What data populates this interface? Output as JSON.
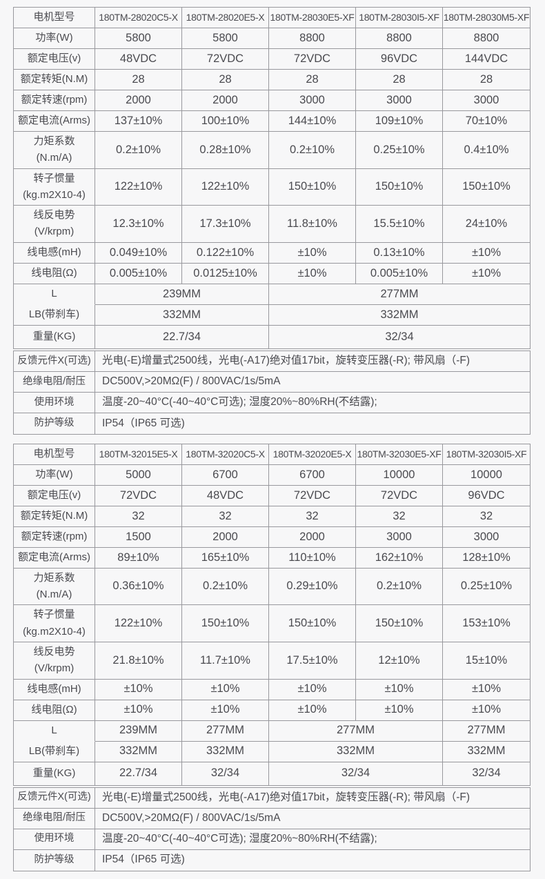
{
  "colors": {
    "page_background": "#f7f7f8",
    "table_border": "#98989d",
    "text": "#4a4a4f"
  },
  "tables": [
    {
      "rows": [
        {
          "label": "电机型号",
          "header": true,
          "cells": [
            "180TM-28020C5-X",
            "180TM-28020E5-X",
            "180TM-28030E5-XF",
            "180TM-28030I5-XF",
            "180TM-28030M5-XF"
          ]
        },
        {
          "label": "功率(W)",
          "cells": [
            "5800",
            "5800",
            "8800",
            "8800",
            "8800"
          ]
        },
        {
          "label": "额定电压(v)",
          "cells": [
            "48VDC",
            "72VDC",
            "72VDC",
            "96VDC",
            "144VDC"
          ]
        },
        {
          "label": "额定转矩(N.M)",
          "cells": [
            "28",
            "28",
            "28",
            "28",
            "28"
          ]
        },
        {
          "label": "额定转速(rpm)",
          "cells": [
            "2000",
            "2000",
            "3000",
            "3000",
            "3000"
          ]
        },
        {
          "label": "额定电流(Arms)",
          "cells": [
            "137±10%",
            "100±10%",
            "144±10%",
            "109±10%",
            "70±10%"
          ]
        },
        {
          "label": "力矩系数\n(N.m/A)",
          "cells": [
            "0.2±10%",
            "0.28±10%",
            "0.2±10%",
            "0.25±10%",
            "0.4±10%"
          ]
        },
        {
          "label": "转子惯量\n(kg.m2X10-4)",
          "cells": [
            "122±10%",
            "122±10%",
            "150±10%",
            "150±10%",
            "150±10%"
          ]
        },
        {
          "label": "线反电势\n(V/krpm)",
          "cells": [
            "12.3±10%",
            "17.3±10%",
            "11.8±10%",
            "15.5±10%",
            "24±10%"
          ]
        },
        {
          "label": "线电感(mH)",
          "cells": [
            "0.049±10%",
            "0.122±10%",
            "±10%",
            "0.13±10%",
            "±10%"
          ]
        },
        {
          "label": "线电阻(Ω)",
          "cells": [
            "0.005±10%",
            "0.0125±10%",
            "±10%",
            "0.005±10%",
            "±10%"
          ]
        },
        {
          "label": "L",
          "merge_label_down": true,
          "cells": [
            {
              "text": "239MM",
              "span": 2
            },
            {
              "text": "277MM",
              "span": 3
            }
          ]
        },
        {
          "label": "LB(带刹车)",
          "cells": [
            {
              "text": "332MM",
              "span": 2
            },
            {
              "text": "332MM",
              "span": 3
            }
          ]
        },
        {
          "label": "重量(KG)",
          "tall": true,
          "cells": [
            {
              "text": "22.7/34",
              "span": 2
            },
            {
              "text": "32/34",
              "span": 3
            }
          ]
        }
      ],
      "notes": [
        {
          "label": "反馈元件X(可选)",
          "value": "光电(-E)增量式2500线，光电(-A17)绝对值17bit，旋转变压器(-R); 带风扇（-F)"
        },
        {
          "label": "绝缘电阻/耐压",
          "value": "DC500V,>20MΩ(F) / 800VAC/1s/5mA"
        },
        {
          "label": "使用环境",
          "value": "温度-20~40°C(-40~40°C可选); 湿度20%~80%RH(不结露);"
        },
        {
          "label": "防护等级",
          "value": "IP54（IP65 可选)"
        }
      ]
    },
    {
      "rows": [
        {
          "label": "电机型号",
          "header": true,
          "cells": [
            "180TM-32015E5-X",
            "180TM-32020C5-X",
            "180TM-32020E5-X",
            "180TM-32030E5-XF",
            "180TM-32030I5-XF"
          ]
        },
        {
          "label": "功率(W)",
          "cells": [
            "5000",
            "6700",
            "6700",
            "10000",
            "10000"
          ]
        },
        {
          "label": "额定电压(v)",
          "cells": [
            "72VDC",
            "48VDC",
            "72VDC",
            "72VDC",
            "96VDC"
          ]
        },
        {
          "label": "额定转矩(N.M)",
          "cells": [
            "32",
            "32",
            "32",
            "32",
            "32"
          ]
        },
        {
          "label": "额定转速(rpm)",
          "cells": [
            "1500",
            "2000",
            "2000",
            "3000",
            "3000"
          ]
        },
        {
          "label": "额定电流(Arms)",
          "cells": [
            "89±10%",
            "165±10%",
            "110±10%",
            "162±10%",
            "128±10%"
          ]
        },
        {
          "label": "力矩系数\n(N.m/A)",
          "cells": [
            "0.36±10%",
            "0.2±10%",
            "0.29±10%",
            "0.2±10%",
            "0.25±10%"
          ]
        },
        {
          "label": "转子惯量\n(kg.m2X10-4)",
          "cells": [
            "122±10%",
            "150±10%",
            "150±10%",
            "150±10%",
            "153±10%"
          ]
        },
        {
          "label": "线反电势\n(V/krpm)",
          "cells": [
            "21.8±10%",
            "11.7±10%",
            "17.5±10%",
            "12±10%",
            "15±10%"
          ]
        },
        {
          "label": "线电感(mH)",
          "cells": [
            "±10%",
            "±10%",
            "±10%",
            "±10%",
            "±10%"
          ]
        },
        {
          "label": "线电阻(Ω)",
          "cells": [
            "±10%",
            "±10%",
            "±10%",
            "±10%",
            "±10%"
          ]
        },
        {
          "label": "L",
          "merge_label_down": true,
          "cells": [
            {
              "text": "239MM"
            },
            {
              "text": "277MM"
            },
            {
              "text": "277MM",
              "span": 2
            },
            {
              "text": "277MM"
            }
          ]
        },
        {
          "label": "LB(带刹车)",
          "cells": [
            {
              "text": "332MM"
            },
            {
              "text": "332MM"
            },
            {
              "text": "332MM",
              "span": 2
            },
            {
              "text": "332MM"
            }
          ]
        },
        {
          "label": "重量(KG)",
          "tall": true,
          "cells": [
            {
              "text": "22.7/34"
            },
            {
              "text": "32/34"
            },
            {
              "text": "32/34",
              "span": 2
            },
            {
              "text": "32/34"
            }
          ]
        }
      ],
      "notes": [
        {
          "label": "反馈元件X(可选)",
          "value": "光电(-E)增量式2500线，光电(-A17)绝对值17bit，旋转变压器(-R); 带风扇（-F)"
        },
        {
          "label": "绝缘电阻/耐压",
          "value": "DC500V,>20MΩ(F) / 800VAC/1s/5mA"
        },
        {
          "label": "使用环境",
          "value": "温度-20~40°C(-40~40°C可选); 湿度20%~80%RH(不结露);"
        },
        {
          "label": "防护等级",
          "value": "IP54（IP65 可选)"
        }
      ]
    }
  ]
}
